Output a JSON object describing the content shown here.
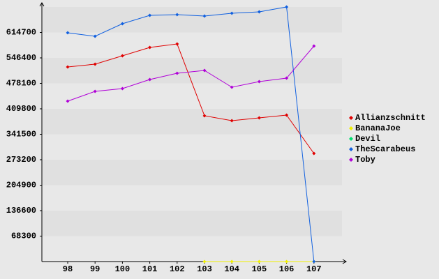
{
  "chart_data": {
    "type": "line",
    "categories": [
      "98",
      "99",
      "100",
      "101",
      "102",
      "103",
      "104",
      "105",
      "106",
      "107"
    ],
    "series": [
      {
        "name": "Allianzschnitt",
        "color": "#e00000",
        "values": [
          522100,
          529600,
          552000,
          574500,
          583800,
          391100,
          378000,
          385500,
          393000,
          290000
        ]
      },
      {
        "name": "BananaJoe",
        "color": "#f0f000",
        "values": [
          null,
          null,
          null,
          null,
          null,
          0,
          0,
          0,
          0,
          0
        ]
      },
      {
        "name": "Devil",
        "color": "#00e070",
        "values": [
          null,
          null,
          null,
          null,
          null,
          null,
          null,
          null,
          null,
          null
        ]
      },
      {
        "name": "TheScarabeus",
        "color": "#1060e0",
        "values": [
          613800,
          604400,
          638100,
          660500,
          662400,
          658700,
          666200,
          669900,
          683000,
          0
        ]
      },
      {
        "name": "Toby",
        "color": "#b000d8",
        "values": [
          430400,
          456600,
          464100,
          488400,
          505200,
          512700,
          467800,
          482800,
          492100,
          578200
        ]
      }
    ],
    "ylim": [
      0,
      683000
    ],
    "yticks": [
      68300,
      136600,
      204900,
      273200,
      341500,
      409800,
      478100,
      546400,
      614700
    ],
    "grid": true,
    "legend": "right"
  }
}
